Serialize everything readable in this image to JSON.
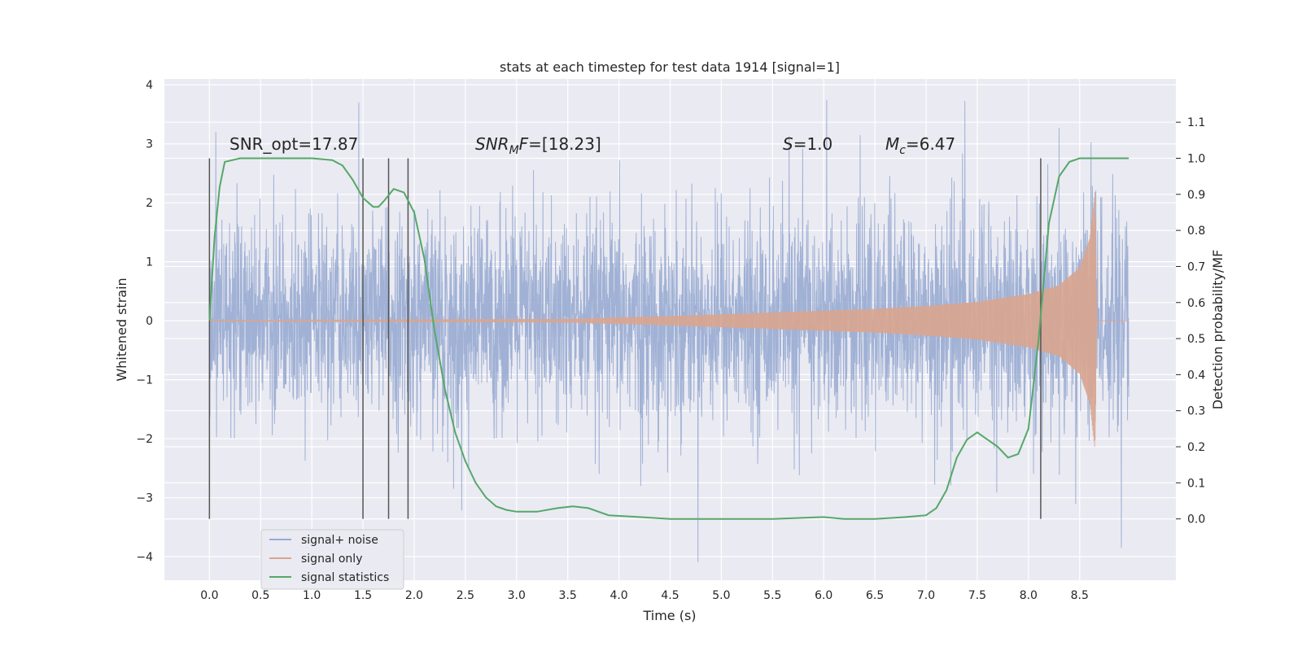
{
  "chart_data": {
    "type": "line",
    "title": "stats at each timestep for test data 1914 [signal=1]",
    "xlabel": "Time (s)",
    "ylabel": "Whitened strain",
    "y2label": "Detection probability/MF",
    "xlim": [
      -0.44,
      9.44
    ],
    "ylim": [
      -4.4,
      4.1
    ],
    "y2lim": [
      -0.17,
      1.22
    ],
    "xticks": [
      "0.0",
      "0.5",
      "1.0",
      "1.5",
      "2.0",
      "2.5",
      "3.0",
      "3.5",
      "4.0",
      "4.5",
      "5.0",
      "5.5",
      "6.0",
      "6.5",
      "7.0",
      "7.5",
      "8.0",
      "8.5"
    ],
    "yticks": [
      "4",
      "3",
      "2",
      "1",
      "0",
      "−1",
      "−2",
      "−3",
      "−4"
    ],
    "y2ticks": [
      "1.1",
      "1.0",
      "0.9",
      "0.8",
      "0.7",
      "0.6",
      "0.5",
      "0.4",
      "0.3",
      "0.2",
      "0.1",
      "0.0"
    ],
    "grid": true,
    "legend_position": "lower-left",
    "colors": {
      "background": "#eaeaf2",
      "grid": "#ffffff",
      "noise": "#98abd2",
      "signal": "#d9a58f",
      "stats": "#55a868",
      "vlines": "#555555"
    },
    "annotations": {
      "snr_opt": "SNR_opt=17.87",
      "snr_mf_label": "SNR",
      "snr_mf_sub": "M",
      "snr_mf_label2": "F",
      "snr_mf_value": "=[18.23]",
      "s_label": "S",
      "s_value": "=1.0",
      "mc_label": "M",
      "mc_sub": "c",
      "mc_value": "=6.47"
    },
    "series": [
      {
        "name": "signal+ noise",
        "description_range": [
          -4.0,
          3.7
        ],
        "x_range": [
          0.0,
          8.98
        ]
      },
      {
        "name": "signal only",
        "x_range": [
          0.0,
          8.98
        ],
        "envelope": {
          "x": [
            0.0,
            3.5,
            4.5,
            5.5,
            6.5,
            7.0,
            7.5,
            8.0,
            8.3,
            8.5,
            8.6,
            8.65,
            8.67
          ],
          "amp": [
            0.01,
            0.03,
            0.08,
            0.14,
            0.2,
            0.25,
            0.32,
            0.45,
            0.6,
            0.9,
            1.4,
            2.2,
            0.05
          ]
        },
        "ringdown_end": 8.67
      },
      {
        "name": "signal statistics",
        "x": [
          0.0,
          0.05,
          0.1,
          0.15,
          0.3,
          0.6,
          1.0,
          1.2,
          1.3,
          1.4,
          1.5,
          1.6,
          1.65,
          1.7,
          1.8,
          1.9,
          2.0,
          2.1,
          2.2,
          2.3,
          2.4,
          2.5,
          2.6,
          2.7,
          2.8,
          2.9,
          3.0,
          3.2,
          3.4,
          3.55,
          3.7,
          3.9,
          4.2,
          4.5,
          5.0,
          5.5,
          6.0,
          6.2,
          6.5,
          6.8,
          7.0,
          7.1,
          7.2,
          7.3,
          7.4,
          7.5,
          7.6,
          7.7,
          7.8,
          7.9,
          8.0,
          8.1,
          8.2,
          8.3,
          8.4,
          8.5,
          8.7,
          8.98
        ],
        "y": [
          0.55,
          0.78,
          0.92,
          0.99,
          1.0,
          1.0,
          1.0,
          0.995,
          0.98,
          0.94,
          0.89,
          0.865,
          0.865,
          0.88,
          0.915,
          0.905,
          0.85,
          0.72,
          0.52,
          0.36,
          0.24,
          0.16,
          0.1,
          0.06,
          0.035,
          0.025,
          0.02,
          0.02,
          0.03,
          0.035,
          0.03,
          0.01,
          0.005,
          0.0,
          0.0,
          0.0,
          0.005,
          0.0,
          0.0,
          0.005,
          0.01,
          0.03,
          0.08,
          0.17,
          0.22,
          0.24,
          0.22,
          0.2,
          0.17,
          0.18,
          0.25,
          0.5,
          0.82,
          0.95,
          0.99,
          1.0,
          1.0,
          1.0
        ]
      }
    ],
    "vlines_x": [
      0.0,
      1.5,
      1.75,
      1.94,
      8.12
    ]
  }
}
